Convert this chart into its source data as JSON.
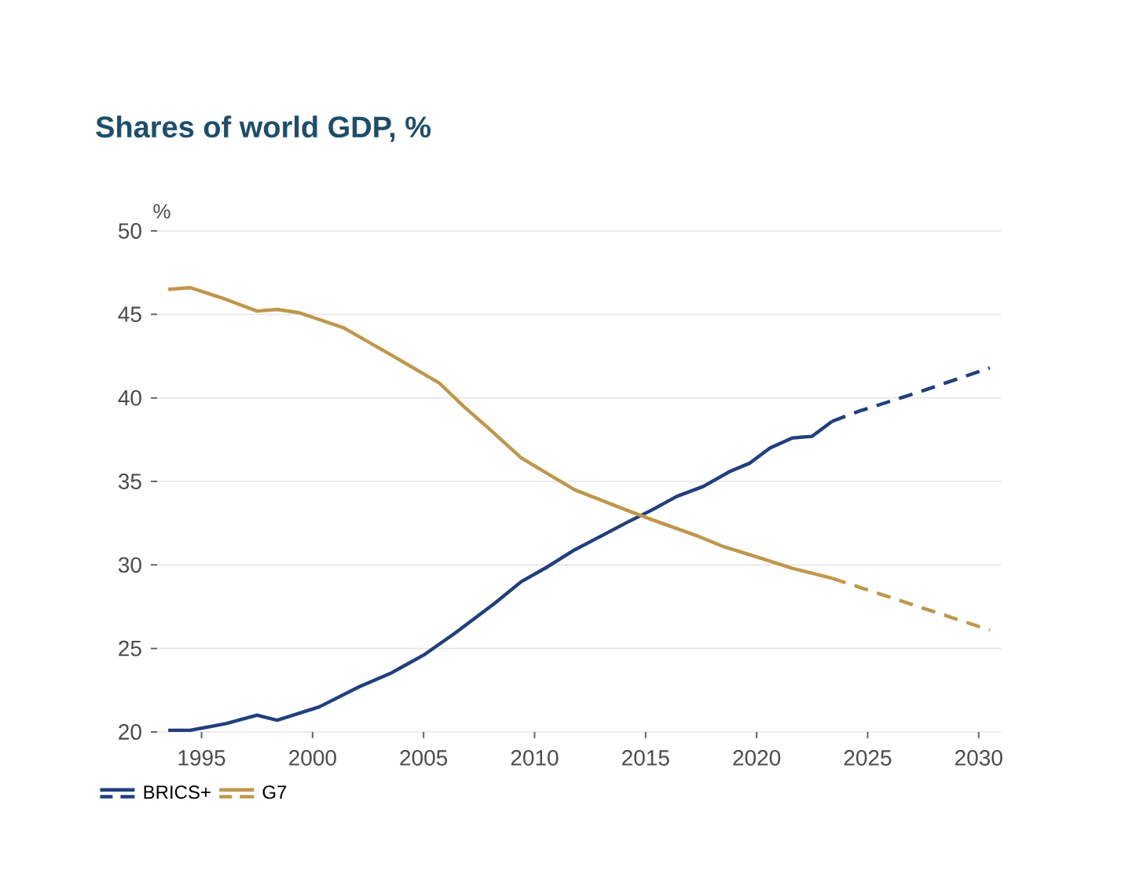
{
  "chart_data": {
    "type": "line",
    "title": "Shares of world GDP, %",
    "ylabel": "%",
    "xlim": [
      1993,
      2031
    ],
    "ylim": [
      20,
      50
    ],
    "xticks": [
      1995,
      2000,
      2005,
      2010,
      2015,
      2020,
      2025,
      2030
    ],
    "yticks": [
      20,
      25,
      30,
      35,
      40,
      45,
      50
    ],
    "grid": "y",
    "legend": "bottom left",
    "series": [
      {
        "name": "BRICS+",
        "color": "#1f3f7f",
        "line_style": "solid",
        "x": [
          1993.5,
          1994.5,
          1996.1,
          1997.5,
          1998.4,
          2000.3,
          2002.1,
          2003.5,
          2005.0,
          2006.4,
          2008.2,
          2009.4,
          2010.6,
          2011.8,
          2014.1,
          2015.3,
          2016.4,
          2017.6,
          2018.8,
          2019.7,
          2020.6,
          2021.6,
          2022.5,
          2023.4
        ],
        "values": [
          20.1,
          20.1,
          20.5,
          21.0,
          20.7,
          21.5,
          22.7,
          23.5,
          24.6,
          25.9,
          27.7,
          29.0,
          29.9,
          30.9,
          32.5,
          33.3,
          34.1,
          34.7,
          35.6,
          36.1,
          37.0,
          37.6,
          37.7,
          38.6
        ]
      },
      {
        "color": "#1f3f7f",
        "line_style": "dashed",
        "x": [
          2023.4,
          2024.6,
          2027.2,
          2030.5
        ],
        "values": [
          38.6,
          39.2,
          40.3,
          41.8
        ]
      },
      {
        "name": "G7",
        "color": "#c0974a",
        "line_style": "solid",
        "x": [
          1993.5,
          1994.5,
          1996.1,
          1997.5,
          1998.4,
          1999.4,
          2001.4,
          2003.5,
          2005.7,
          2006.8,
          2008.0,
          2009.4,
          2011.8,
          2014.1,
          2015.3,
          2017.4,
          2018.5,
          2020.2,
          2021.6,
          2023.4
        ],
        "values": [
          46.5,
          46.6,
          45.9,
          45.2,
          45.3,
          45.1,
          44.2,
          42.6,
          40.9,
          39.5,
          38.1,
          36.4,
          34.5,
          33.3,
          32.7,
          31.7,
          31.1,
          30.4,
          29.8,
          29.2
        ]
      },
      {
        "color": "#c0974a",
        "line_style": "dashed",
        "x": [
          2023.4,
          2030.5
        ],
        "values": [
          29.2,
          26.1
        ]
      }
    ]
  }
}
